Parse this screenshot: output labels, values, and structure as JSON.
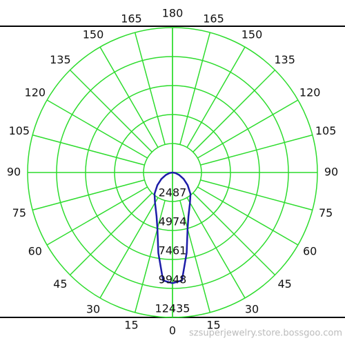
{
  "chart_data": {
    "type": "polar",
    "x": [
      0,
      5,
      10,
      15,
      20,
      30,
      40,
      50,
      60,
      70,
      80,
      90
    ],
    "series": [
      {
        "color": "#1c1ca8",
        "values": [
          9500,
          9300,
          7000,
          5000,
          4000,
          3000,
          2400,
          1700,
          1100,
          600,
          250,
          0
        ]
      }
    ],
    "ylim": [
      0,
      12435
    ],
    "yticks": [
      2487,
      4974,
      7461,
      9948,
      12435
    ],
    "xticks": [
      0,
      15,
      30,
      45,
      60,
      75,
      90,
      105,
      120,
      135,
      150,
      165,
      180
    ],
    "grid": true
  },
  "watermark": "szsuperjewelry.store.bossgoo.com"
}
